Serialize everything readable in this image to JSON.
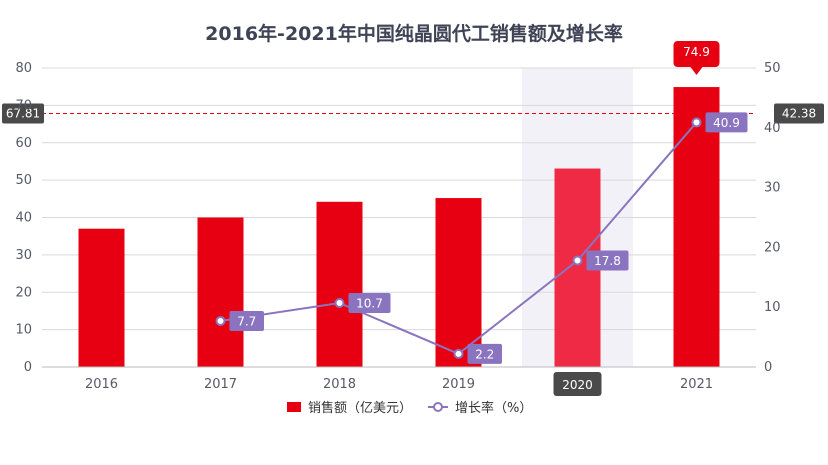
{
  "chart_data": {
    "type": "bar",
    "title": "2016年-2021年中国纯晶圆代工销售额及增长率",
    "categories": [
      "2016",
      "2017",
      "2018",
      "2019",
      "2020",
      "2021"
    ],
    "series": [
      {
        "name": "销售额（亿美元）",
        "type": "bar",
        "axis": "left",
        "values": [
          37,
          40,
          44.2,
          45.2,
          53.1,
          74.9
        ],
        "color": "#e60012"
      },
      {
        "name": "增长率（%）",
        "type": "line",
        "axis": "right",
        "values": [
          null,
          7.7,
          10.7,
          2.2,
          17.8,
          40.9
        ],
        "color": "#8a74c0"
      }
    ],
    "y_left": {
      "min": 0,
      "max": 80,
      "ticks": [
        0,
        10,
        20,
        30,
        40,
        50,
        60,
        70,
        80
      ]
    },
    "y_right": {
      "min": 0,
      "max": 50,
      "ticks": [
        0,
        10,
        20,
        30,
        40,
        50
      ]
    },
    "data_labels": {
      "line": [
        "7.7",
        "10.7",
        "2.2",
        "17.8",
        "40.9"
      ],
      "bar_peak": "74.9"
    },
    "crosshair": {
      "left_value": "67.81",
      "right_value": "42.38",
      "highlighted_category": "2020"
    },
    "grid": true,
    "legend_position": "bottom"
  }
}
